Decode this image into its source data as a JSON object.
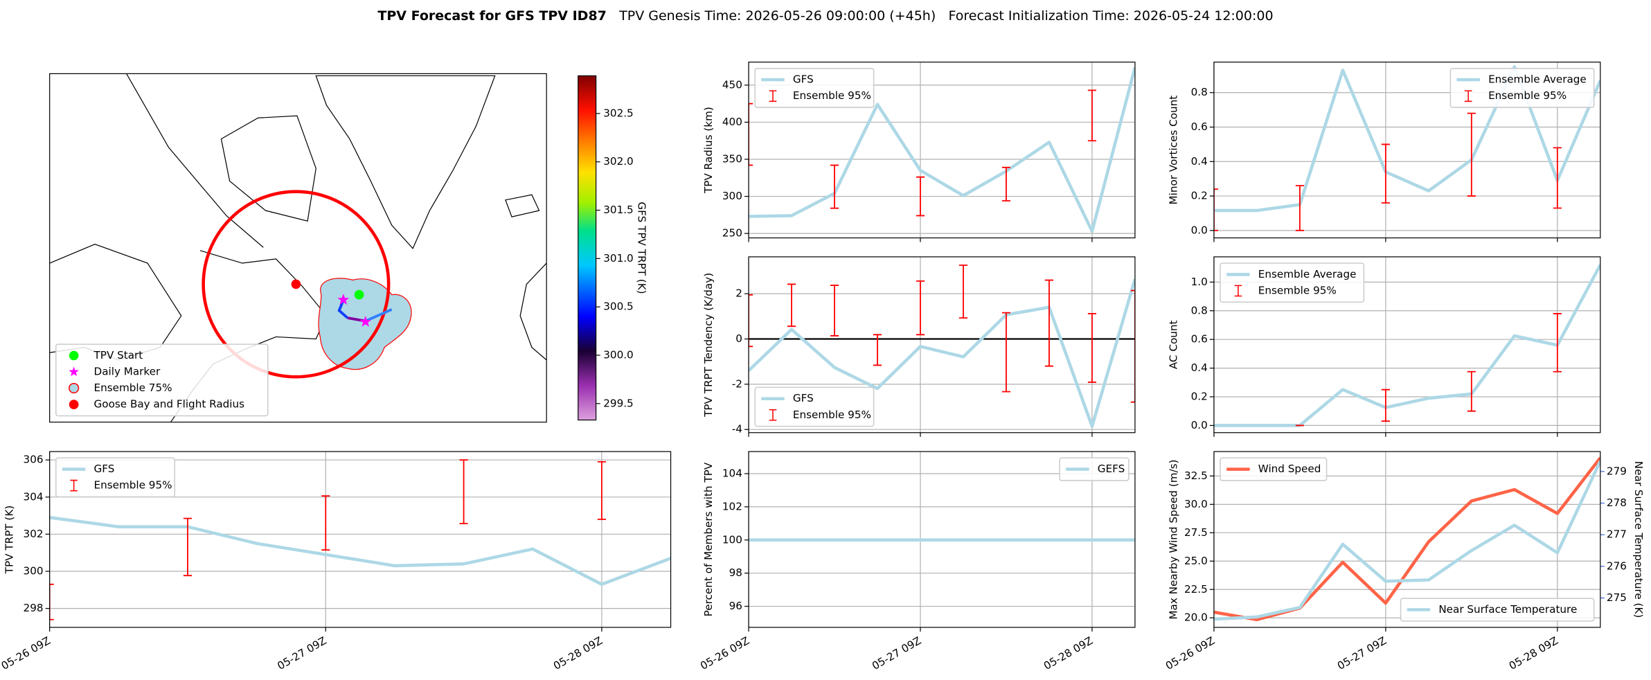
{
  "title": {
    "main": "TPV Forecast for GFS TPV ID87",
    "genesis": "TPV Genesis Time: 2026-05-26 09:00:00 (+45h)",
    "init": "Forecast Initialization Time: 2026-05-24 12:00:00"
  },
  "chart_data": [
    {
      "type": "map",
      "legend": "lower left",
      "legend_items": [
        {
          "name": "TPV Start",
          "color": "#00ff00",
          "marker": "circle"
        },
        {
          "name": "Daily Marker",
          "color": "#ff00ff",
          "marker": "star"
        },
        {
          "name": "Ensemble 75%",
          "color": "#add8e6",
          "edgecolor": "#ff0000",
          "marker": "circle"
        },
        {
          "name": "Goose Bay and Flight Radius",
          "color": "#ff0000",
          "marker": "circle"
        }
      ],
      "colorbar": {
        "label": "GFS TPV TRPT (K)",
        "lim": [
          299.33,
          302.89
        ],
        "ticks": [
          299.5,
          {
            "value": 300,
            "label": "300.0"
          },
          300.5,
          {
            "value": 301,
            "label": "301.0"
          },
          301.5,
          {
            "value": 302,
            "label": "302.0"
          },
          302.5
        ]
      }
    },
    {
      "type": "line",
      "ylabel": "TPV Radius (km)",
      "ylim": [
        244,
        481
      ],
      "yticks": [
        250,
        300,
        350,
        400,
        450
      ],
      "grid": true,
      "legend": "upper left",
      "series": [
        {
          "name": "GFS",
          "color": "#add8e6",
          "values": [
            273,
            274,
            304,
            424,
            335,
            301,
            334,
            373,
            253,
            474
          ]
        }
      ],
      "error_bars": {
        "name": "Ensemble 95%",
        "color": "#ff0000",
        "lower": [
          342,
          null,
          284,
          null,
          274,
          null,
          294,
          null,
          375,
          null
        ],
        "upper": [
          425,
          null,
          342,
          null,
          326,
          null,
          339,
          null,
          443,
          null
        ]
      }
    },
    {
      "type": "line",
      "ylabel": "TPV TRPT Tendency (K/day)",
      "ylim": [
        -4.14,
        3.63
      ],
      "yticks": [
        -4,
        -2,
        0,
        2
      ],
      "grid": true,
      "hline": 0,
      "legend": "lower left",
      "series": [
        {
          "name": "GFS",
          "color": "#add8e6",
          "values": [
            -1.4,
            0.42,
            -1.26,
            -2.19,
            -0.33,
            -0.79,
            1.07,
            1.4,
            -3.86,
            2.65
          ]
        }
      ],
      "error_bars": {
        "name": "Ensemble 95%",
        "color": "#ff0000",
        "lower": [
          -0.33,
          0.56,
          0.14,
          -1.16,
          0.19,
          0.93,
          -2.33,
          -1.2,
          -1.91,
          -2.79
        ],
        "upper": [
          1.95,
          2.42,
          2.37,
          0.19,
          2.56,
          3.26,
          1.16,
          2.6,
          1.12,
          2.14
        ]
      }
    },
    {
      "type": "line",
      "ylabel": "TPV TRPT (K)",
      "categories": [
        "05-26 09Z",
        null,
        null,
        null,
        "05-27 09Z",
        null,
        null,
        null,
        "05-28 09Z",
        null
      ],
      "ylim": [
        296.98,
        306.45
      ],
      "yticks": [
        298,
        300,
        302,
        304,
        306
      ],
      "grid": true,
      "legend": "upper left",
      "series": [
        {
          "name": "GFS",
          "color": "#add8e6",
          "values": [
            302.9,
            302.4,
            302.4,
            301.5,
            300.9,
            300.3,
            300.4,
            301.2,
            299.3,
            300.7
          ]
        }
      ],
      "error_bars": {
        "name": "Ensemble 95%",
        "color": "#ff0000",
        "lower": [
          297.4,
          null,
          299.77,
          null,
          301.15,
          null,
          302.57,
          null,
          302.8,
          null
        ],
        "upper": [
          299.3,
          null,
          302.85,
          null,
          304.06,
          null,
          306.0,
          null,
          305.9,
          null
        ]
      }
    },
    {
      "type": "line",
      "ylabel": "Minor Vortices Count",
      "ylim": [
        -0.043,
        0.977
      ],
      "yticks": [
        {
          "value": 0,
          "label": "0.0"
        },
        0.2,
        0.4,
        0.6,
        0.8
      ],
      "grid": true,
      "legend": "upper right",
      "series": [
        {
          "name": "Ensemble Average",
          "color": "#add8e6",
          "values": [
            0.116,
            0.116,
            0.15,
            0.93,
            0.34,
            0.23,
            0.41,
            0.95,
            0.29,
            0.87
          ]
        }
      ],
      "error_bars": {
        "name": "Ensemble 95%",
        "color": "#ff0000",
        "lower": [
          0,
          null,
          0,
          null,
          0.16,
          null,
          0.2,
          null,
          0.13,
          null
        ],
        "upper": [
          0.24,
          null,
          0.26,
          null,
          0.5,
          null,
          0.68,
          null,
          0.48,
          null
        ]
      }
    },
    {
      "type": "line",
      "ylabel": "AC Count",
      "ylim": [
        -0.05,
        1.176
      ],
      "yticks": [
        {
          "value": 0,
          "label": "0.0"
        },
        0.2,
        0.4,
        0.6,
        0.8,
        {
          "value": 1,
          "label": "1.0"
        }
      ],
      "grid": true,
      "legend": "upper left",
      "series": [
        {
          "name": "Ensemble Average",
          "color": "#add8e6",
          "values": [
            0,
            0,
            0,
            0.25,
            0.125,
            0.19,
            0.22,
            0.625,
            0.56,
            1.12
          ]
        }
      ],
      "error_bars": {
        "name": "Ensemble 95%",
        "color": "#ff0000",
        "lower": [
          null,
          null,
          0,
          null,
          0.03,
          null,
          0.1,
          null,
          0.375,
          null
        ],
        "upper": [
          null,
          null,
          0,
          null,
          0.25,
          null,
          0.375,
          null,
          0.78,
          null
        ]
      }
    },
    {
      "type": "line",
      "ylabel": "Percent of Members with TPV",
      "categories": [
        "05-26 09Z",
        null,
        null,
        null,
        "05-27 09Z",
        null,
        null,
        null,
        "05-28 09Z",
        null
      ],
      "ylim": [
        94.73,
        105.33
      ],
      "yticks": [
        96,
        98,
        100,
        102,
        104
      ],
      "grid": true,
      "legend": "upper right",
      "series": [
        {
          "name": "GEFS",
          "color": "#add8e6",
          "values": [
            100,
            100,
            100,
            100,
            100,
            100,
            100,
            100,
            100,
            100
          ]
        }
      ]
    },
    {
      "type": "line",
      "ylabel": "Max Nearby Wind Speed (m/s)",
      "ylabel_color": "#ff6347",
      "y2label": "Near Surface Temperature (K)",
      "y2label_color": "#4169e1",
      "categories": [
        "05-26 09Z",
        null,
        null,
        null,
        "05-27 09Z",
        null,
        null,
        null,
        "05-28 09Z",
        null
      ],
      "ylim": [
        19.16,
        34.65
      ],
      "yticks": [
        {
          "value": 20,
          "label": "20.0"
        },
        22.5,
        {
          "value": 25,
          "label": "25.0"
        },
        27.5,
        {
          "value": 30,
          "label": "30.0"
        },
        32.5
      ],
      "y2lim": [
        274.07,
        279.63
      ],
      "y2ticks": [
        275,
        276,
        277,
        278,
        279
      ],
      "grid": true,
      "series": [
        {
          "name": "Wind Speed",
          "color": "#ff6347",
          "legend": "upper left",
          "values": [
            20.5,
            19.84,
            20.86,
            24.9,
            21.3,
            26.7,
            30.3,
            31.3,
            29.2,
            34.1
          ]
        },
        {
          "name": "Near Surface Temperature",
          "color": "#add8e6",
          "axis": "y2",
          "legend": "lower right",
          "values": [
            274.33,
            274.4,
            274.7,
            276.7,
            275.53,
            275.57,
            276.5,
            277.3,
            276.43,
            279.33
          ]
        }
      ]
    }
  ]
}
